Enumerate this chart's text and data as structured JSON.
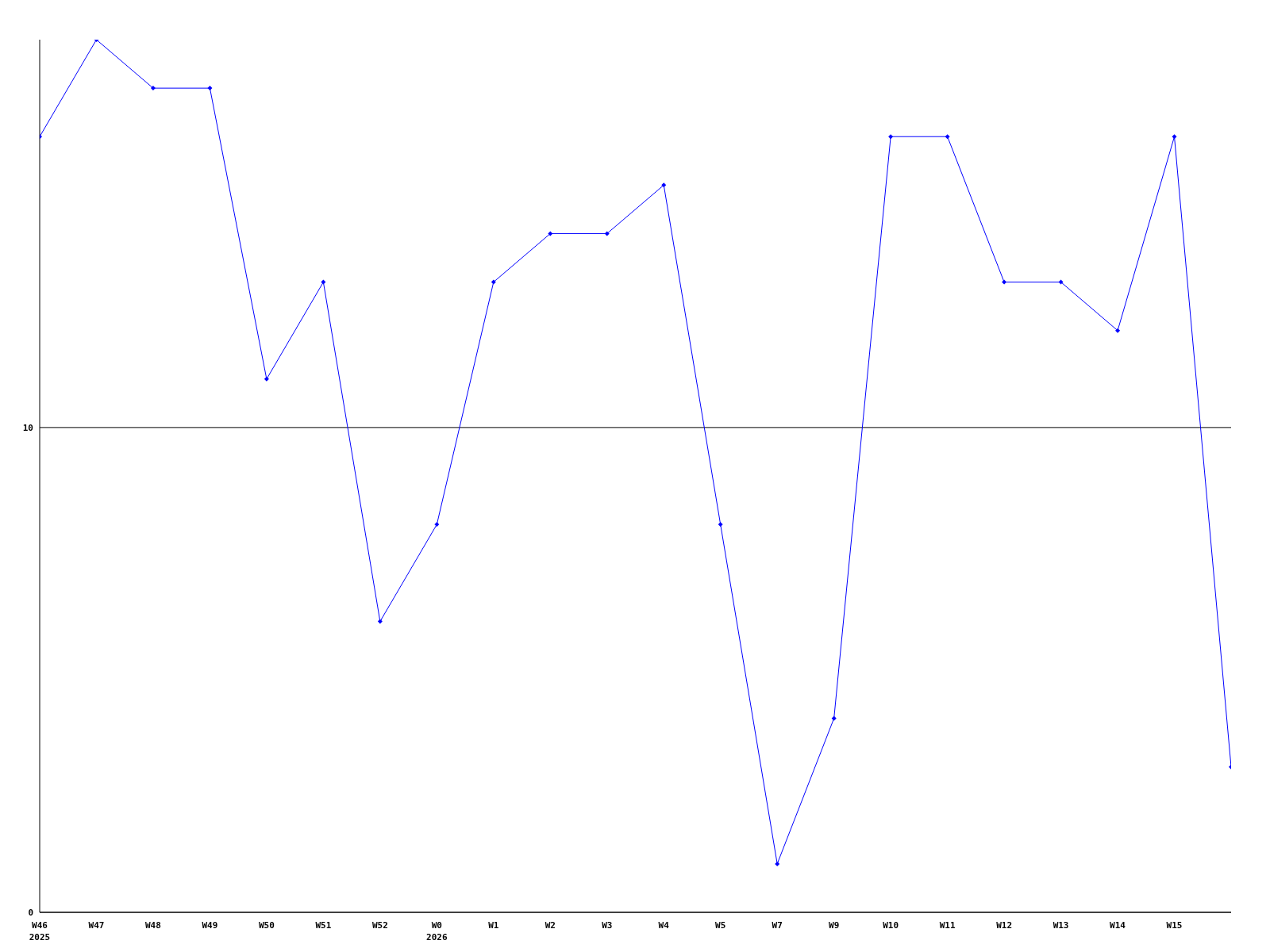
{
  "chart_data": {
    "type": "line",
    "categories": [
      "W46\n2025",
      "W47",
      "W48",
      "W49",
      "W50",
      "W51",
      "W52",
      "W0\n2026",
      "W1",
      "W2",
      "W3",
      "W4",
      "W5",
      "W7",
      "W9",
      "W10",
      "W11",
      "W12",
      "W13",
      "W14",
      "W15",
      null
    ],
    "series": [
      {
        "color": "#0000ff",
        "values": [
          16,
          18,
          17,
          17,
          11,
          13,
          6,
          8,
          13,
          14,
          14,
          15,
          8,
          1,
          4,
          16,
          16,
          13,
          13,
          12,
          16,
          3
        ]
      }
    ],
    "ylim": [
      0,
      18
    ],
    "yticks": [
      0,
      10
    ],
    "grid": "y",
    "marker": "diamond",
    "line_style": "solid"
  }
}
